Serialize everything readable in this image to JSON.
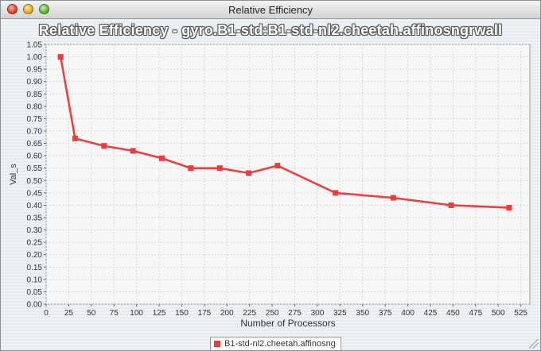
{
  "window": {
    "title": "Relative Efficiency"
  },
  "chart_data": {
    "type": "line",
    "title": "Relative Efficiency - gyro.B1-std:B1-std-nl2.cheetah.affinosngrwall",
    "xlabel": "Number of Processors",
    "ylabel": "Val_s",
    "xlim": [
      0,
      535
    ],
    "ylim": [
      0,
      1.05
    ],
    "x_ticks": [
      0,
      25,
      50,
      75,
      100,
      125,
      150,
      175,
      200,
      225,
      250,
      275,
      300,
      325,
      350,
      375,
      400,
      425,
      450,
      475,
      500,
      525
    ],
    "y_ticks": [
      0.0,
      0.05,
      0.1,
      0.15,
      0.2,
      0.25,
      0.3,
      0.35,
      0.4,
      0.45,
      0.5,
      0.55,
      0.6,
      0.65,
      0.7,
      0.75,
      0.8,
      0.85,
      0.9,
      0.95,
      1.0,
      1.05
    ],
    "grid": true,
    "legend_position": "bottom-center",
    "series": [
      {
        "name": "B1-std-nl2.cheetah.affinosng",
        "color": "#ee3b3b",
        "x": [
          16,
          32,
          64,
          96,
          128,
          160,
          192,
          224,
          256,
          320,
          384,
          448,
          512
        ],
        "y": [
          1.0,
          0.67,
          0.64,
          0.62,
          0.59,
          0.55,
          0.55,
          0.53,
          0.56,
          0.45,
          0.43,
          0.4,
          0.39
        ]
      }
    ]
  }
}
